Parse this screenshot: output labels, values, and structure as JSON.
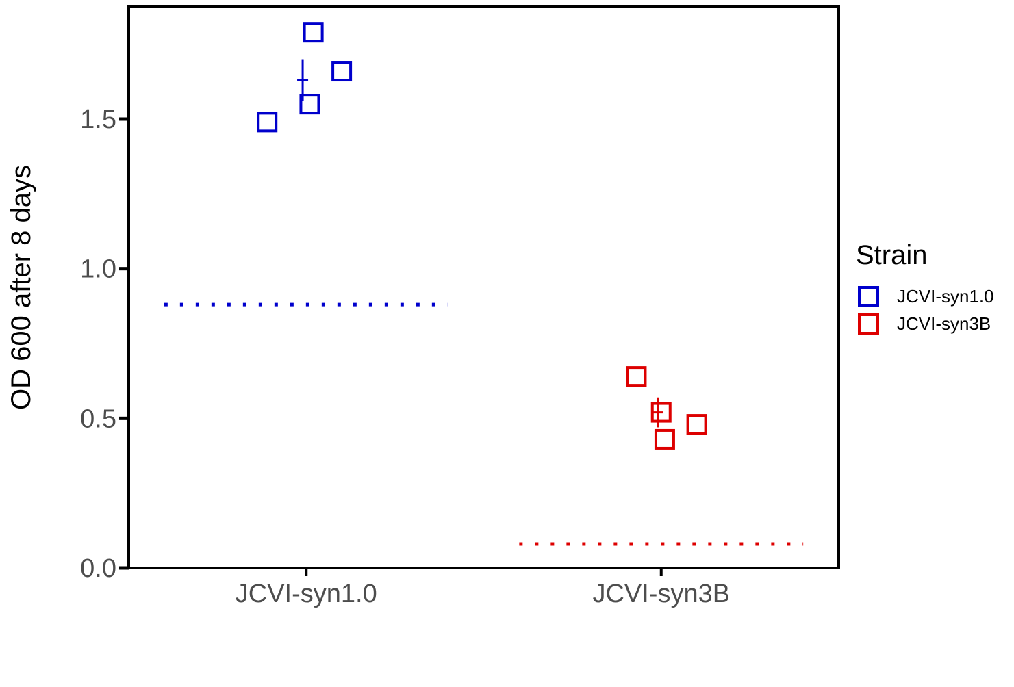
{
  "chart_data": {
    "type": "scatter",
    "ylabel": "OD 600 after 8 days",
    "xlabel": "",
    "categories": [
      "JCVI-syn1.0",
      "JCVI-syn3B"
    ],
    "ylim": [
      0,
      1.875
    ],
    "yticks": [
      0.0,
      0.5,
      1.0,
      1.5
    ],
    "ytick_labels": [
      "0.0",
      "0.5",
      "1.0",
      "1.5"
    ],
    "grid": false,
    "legend": {
      "title": "Strain",
      "placement": "right",
      "entries": [
        "JCVI-syn1.0",
        "JCVI-syn3B"
      ]
    },
    "series": [
      {
        "name": "JCVI-syn1.0",
        "color": "#0000cc",
        "marker": "open-square",
        "points": [
          {
            "jitter": -0.11,
            "y": 1.49
          },
          {
            "jitter": 0.01,
            "y": 1.55
          },
          {
            "jitter": 0.02,
            "y": 1.79
          },
          {
            "jitter": 0.1,
            "y": 1.66
          }
        ],
        "mean": 1.63,
        "error": 0.07,
        "mean_jitter": -0.01,
        "reference_line": 0.88
      },
      {
        "name": "JCVI-syn3B",
        "color": "#dd0000",
        "marker": "open-square",
        "points": [
          {
            "jitter": -0.07,
            "y": 0.64
          },
          {
            "jitter": 0.0,
            "y": 0.52
          },
          {
            "jitter": 0.01,
            "y": 0.43
          },
          {
            "jitter": 0.1,
            "y": 0.48
          }
        ],
        "mean": 0.52,
        "error": 0.05,
        "mean_jitter": -0.01,
        "reference_line": 0.08
      }
    ]
  }
}
